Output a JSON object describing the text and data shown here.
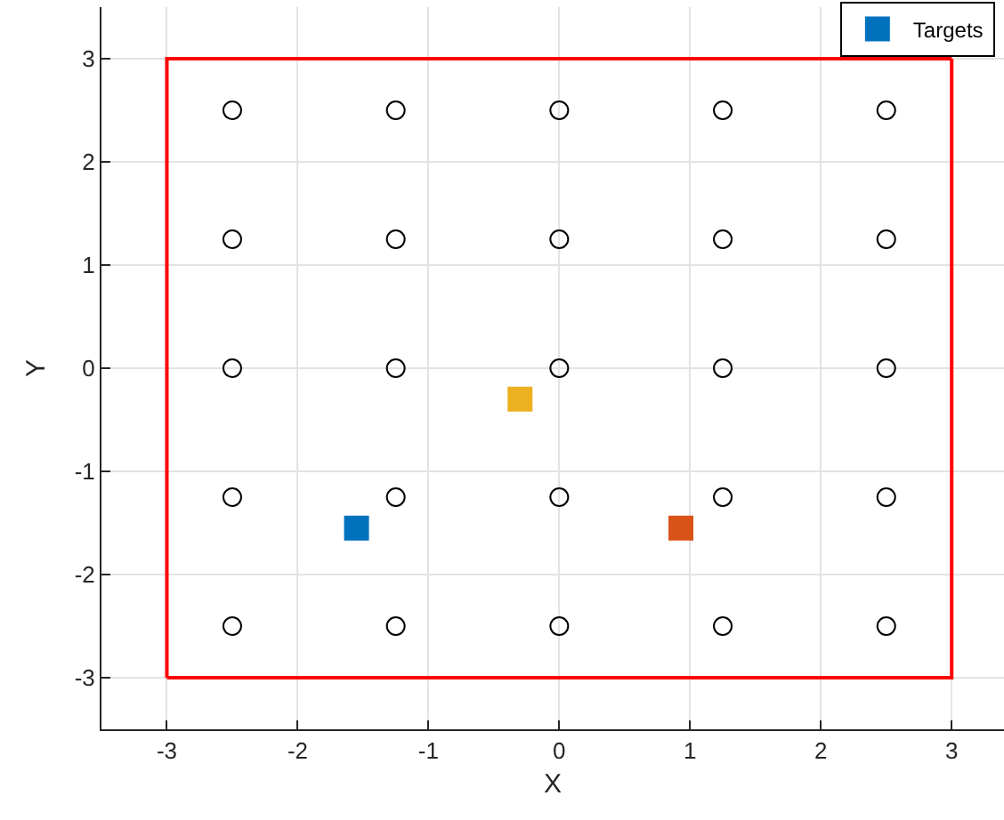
{
  "chart_data": {
    "type": "scatter",
    "xlabel": "X",
    "ylabel": "Y",
    "xlim": [
      -3.5,
      3.4
    ],
    "ylim": [
      -3.5,
      3.5
    ],
    "xticks": [
      -3,
      -2,
      -1,
      0,
      1,
      2,
      3
    ],
    "yticks": [
      -3,
      -2,
      -1,
      0,
      1,
      2,
      3
    ],
    "grid": true,
    "legend": "top right",
    "series": [
      {
        "type": "line",
        "color": "#ff0000",
        "marker": "none",
        "line_style": "solid",
        "x": [
          -3,
          3,
          3
        ],
        "values": [
          -3,
          -3,
          3
        ]
      },
      {
        "type": "line",
        "color": "#ff0000",
        "marker": "none",
        "line_style": "solid",
        "x": [
          3,
          -3,
          -3
        ],
        "values": [
          3,
          3,
          -3
        ]
      },
      {
        "color": "#000000",
        "marker": "circle",
        "x": [
          -2.5,
          -1.25,
          0,
          1.25,
          2.5,
          -2.5,
          -1.25,
          0,
          1.25,
          2.5,
          -2.5,
          -1.25,
          0,
          1.25,
          2.5,
          -2.5,
          -1.25,
          0,
          1.25,
          2.5,
          -2.5,
          -1.25,
          0,
          1.25,
          2.5
        ],
        "values": [
          2.5,
          2.5,
          2.5,
          2.5,
          2.5,
          1.25,
          1.25,
          1.25,
          1.25,
          1.25,
          0,
          0,
          0,
          0,
          0,
          -1.25,
          -1.25,
          -1.25,
          -1.25,
          -1.25,
          -2.5,
          -2.5,
          -2.5,
          -2.5,
          -2.5
        ]
      },
      {
        "name": "Targets",
        "colors": [
          "#0072bd",
          "#edb120",
          "#d95319"
        ],
        "marker": "square",
        "x": [
          -1.55,
          -0.3,
          0.93
        ],
        "values": [
          -1.55,
          -0.3,
          -1.55
        ]
      }
    ]
  }
}
